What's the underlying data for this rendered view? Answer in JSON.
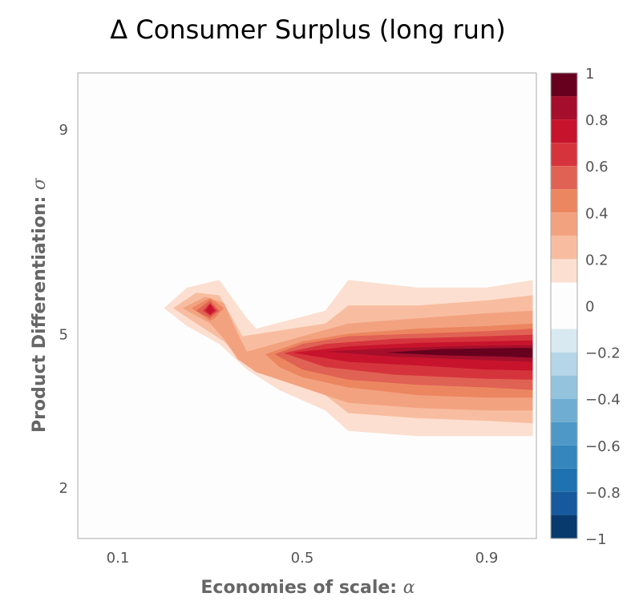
{
  "chart_data": {
    "type": "contour",
    "title": "Δ Consumer Surplus (long run)",
    "xlabel": "Economies of scale: ",
    "xlabel_symbol": "α",
    "ylabel": "Product Differentiation: ",
    "ylabel_symbol": "σ",
    "xlim": [
      0.05,
      1.0
    ],
    "ylim": [
      1.0,
      10.0
    ],
    "x_ticks": [
      0.1,
      0.5,
      0.9
    ],
    "x_tick_labels": [
      "0.1",
      "0.5",
      "0.9"
    ],
    "y_ticks": [
      2,
      5,
      9
    ],
    "y_tick_labels": [
      "2",
      "5",
      "9"
    ],
    "grid": false,
    "colorbar": {
      "position": "right",
      "min": -1,
      "max": 1,
      "tick_values": [
        1,
        0.8,
        0.6,
        0.4,
        0.2,
        0,
        -0.2,
        -0.4,
        -0.6,
        -0.8,
        -1
      ],
      "tick_labels": [
        "1",
        "0.8",
        "0.6",
        "0.4",
        "0.2",
        "0",
        "−0.2",
        "−0.4",
        "−0.6",
        "−0.8",
        "−1"
      ],
      "bands": [
        {
          "from": 0.9,
          "to": 1.0,
          "color": "#67001f"
        },
        {
          "from": 0.8,
          "to": 0.9,
          "color": "#a50f2c"
        },
        {
          "from": 0.7,
          "to": 0.8,
          "color": "#c7142c"
        },
        {
          "from": 0.6,
          "to": 0.7,
          "color": "#d6343c"
        },
        {
          "from": 0.5,
          "to": 0.6,
          "color": "#e06254"
        },
        {
          "from": 0.4,
          "to": 0.5,
          "color": "#ec8660"
        },
        {
          "from": 0.3,
          "to": 0.4,
          "color": "#f3a280"
        },
        {
          "from": 0.2,
          "to": 0.3,
          "color": "#f8bda0"
        },
        {
          "from": 0.1,
          "to": 0.2,
          "color": "#fcdfd0"
        },
        {
          "from": -0.1,
          "to": 0.1,
          "color": "#fdfdfd"
        },
        {
          "from": -0.2,
          "to": -0.1,
          "color": "#d9e9f2"
        },
        {
          "from": -0.3,
          "to": -0.2,
          "color": "#b5d6e8"
        },
        {
          "from": -0.4,
          "to": -0.3,
          "color": "#93c3dd"
        },
        {
          "from": -0.5,
          "to": -0.4,
          "color": "#6fadd2"
        },
        {
          "from": -0.6,
          "to": -0.5,
          "color": "#4d98c7"
        },
        {
          "from": -0.7,
          "to": -0.6,
          "color": "#3486bd"
        },
        {
          "from": -0.8,
          "to": -0.7,
          "color": "#1f72b0"
        },
        {
          "from": -0.9,
          "to": -0.8,
          "color": "#16599c"
        },
        {
          "from": -1.0,
          "to": -0.9,
          "color": "#083a6e"
        }
      ]
    },
    "contour_regions": [
      {
        "level": 0.1,
        "color": "#fcdfd0",
        "points": [
          [
            0.2,
            5.5
          ],
          [
            0.25,
            5.9
          ],
          [
            0.32,
            6.05
          ],
          [
            0.38,
            5.3
          ],
          [
            0.4,
            5.1
          ],
          [
            0.55,
            5.45
          ],
          [
            0.6,
            6.05
          ],
          [
            0.75,
            5.9
          ],
          [
            0.9,
            5.9
          ],
          [
            1.0,
            6.05
          ],
          [
            1.0,
            3.0
          ],
          [
            0.9,
            3.0
          ],
          [
            0.75,
            3.0
          ],
          [
            0.6,
            3.1
          ],
          [
            0.55,
            3.5
          ],
          [
            0.45,
            3.9
          ],
          [
            0.38,
            4.3
          ],
          [
            0.32,
            4.8
          ],
          [
            0.25,
            5.15
          ]
        ]
      },
      {
        "level": 0.2,
        "color": "#f8bda0",
        "points": [
          [
            0.22,
            5.5
          ],
          [
            0.27,
            5.8
          ],
          [
            0.32,
            5.75
          ],
          [
            0.37,
            4.95
          ],
          [
            0.55,
            5.2
          ],
          [
            0.6,
            5.55
          ],
          [
            0.75,
            5.55
          ],
          [
            0.9,
            5.65
          ],
          [
            1.0,
            5.75
          ],
          [
            1.0,
            3.25
          ],
          [
            0.9,
            3.3
          ],
          [
            0.75,
            3.35
          ],
          [
            0.6,
            3.45
          ],
          [
            0.55,
            3.8
          ],
          [
            0.45,
            4.15
          ],
          [
            0.38,
            4.4
          ],
          [
            0.33,
            4.85
          ],
          [
            0.27,
            5.2
          ]
        ]
      },
      {
        "level": 0.3,
        "color": "#f3a280",
        "points": [
          [
            0.24,
            5.5
          ],
          [
            0.29,
            5.72
          ],
          [
            0.33,
            5.6
          ],
          [
            0.36,
            5.0
          ],
          [
            0.38,
            4.65
          ],
          [
            0.5,
            4.95
          ],
          [
            0.6,
            5.2
          ],
          [
            0.75,
            5.3
          ],
          [
            0.9,
            5.4
          ],
          [
            1.0,
            5.45
          ],
          [
            1.0,
            3.5
          ],
          [
            0.9,
            3.5
          ],
          [
            0.75,
            3.55
          ],
          [
            0.6,
            3.65
          ],
          [
            0.5,
            3.95
          ],
          [
            0.4,
            4.25
          ],
          [
            0.36,
            4.5
          ],
          [
            0.33,
            4.9
          ],
          [
            0.3,
            5.2
          ]
        ]
      },
      {
        "level": 0.4,
        "color": "#ec8660",
        "points": [
          [
            0.26,
            5.5
          ],
          [
            0.3,
            5.7
          ],
          [
            0.33,
            5.5
          ],
          [
            0.31,
            5.3
          ],
          [
            0.3,
            5.25
          ]
        ]
      },
      {
        "level": 0.4,
        "color": "#ec8660",
        "points": [
          [
            0.42,
            4.6
          ],
          [
            0.5,
            4.85
          ],
          [
            0.6,
            5.0
          ],
          [
            0.75,
            5.1
          ],
          [
            0.9,
            5.15
          ],
          [
            1.0,
            5.2
          ],
          [
            1.0,
            3.75
          ],
          [
            0.9,
            3.75
          ],
          [
            0.75,
            3.8
          ],
          [
            0.6,
            3.95
          ],
          [
            0.5,
            4.15
          ],
          [
            0.45,
            4.35
          ]
        ]
      },
      {
        "level": 0.5,
        "color": "#e06254",
        "points": [
          [
            0.27,
            5.45
          ],
          [
            0.3,
            5.65
          ],
          [
            0.32,
            5.45
          ],
          [
            0.3,
            5.3
          ]
        ]
      },
      {
        "level": 0.5,
        "color": "#e06254",
        "points": [
          [
            0.44,
            4.6
          ],
          [
            0.5,
            4.8
          ],
          [
            0.6,
            4.95
          ],
          [
            0.75,
            5.0
          ],
          [
            0.9,
            5.05
          ],
          [
            1.0,
            5.1
          ],
          [
            1.0,
            3.9
          ],
          [
            0.9,
            3.95
          ],
          [
            0.75,
            4.0
          ],
          [
            0.6,
            4.1
          ],
          [
            0.5,
            4.3
          ]
        ]
      },
      {
        "level": 0.6,
        "color": "#d6343c",
        "points": [
          [
            0.285,
            5.45
          ],
          [
            0.3,
            5.6
          ],
          [
            0.315,
            5.45
          ],
          [
            0.3,
            5.35
          ]
        ]
      },
      {
        "level": 0.6,
        "color": "#d6343c",
        "points": [
          [
            0.46,
            4.62
          ],
          [
            0.55,
            4.8
          ],
          [
            0.7,
            4.9
          ],
          [
            0.9,
            4.95
          ],
          [
            1.0,
            4.98
          ],
          [
            1.0,
            4.1
          ],
          [
            0.9,
            4.12
          ],
          [
            0.7,
            4.2
          ],
          [
            0.55,
            4.35
          ]
        ]
      },
      {
        "level": 0.7,
        "color": "#c7142c",
        "points": [
          [
            0.29,
            5.45
          ],
          [
            0.3,
            5.58
          ],
          [
            0.31,
            5.45
          ],
          [
            0.3,
            5.38
          ]
        ]
      },
      {
        "level": 0.7,
        "color": "#c7142c",
        "points": [
          [
            0.48,
            4.63
          ],
          [
            0.6,
            4.75
          ],
          [
            0.75,
            4.82
          ],
          [
            0.9,
            4.85
          ],
          [
            1.0,
            4.87
          ],
          [
            1.0,
            4.28
          ],
          [
            0.9,
            4.3
          ],
          [
            0.75,
            4.38
          ],
          [
            0.6,
            4.45
          ]
        ]
      },
      {
        "level": 0.8,
        "color": "#a50f2c",
        "points": [
          [
            0.55,
            4.65
          ],
          [
            0.7,
            4.72
          ],
          [
            0.85,
            4.76
          ],
          [
            1.0,
            4.78
          ],
          [
            1.0,
            4.45
          ],
          [
            0.85,
            4.5
          ],
          [
            0.7,
            4.55
          ]
        ]
      },
      {
        "level": 0.9,
        "color": "#67001f",
        "points": [
          [
            0.68,
            4.63
          ],
          [
            0.8,
            4.7
          ],
          [
            0.95,
            4.72
          ],
          [
            1.0,
            4.72
          ],
          [
            1.0,
            4.53
          ],
          [
            0.95,
            4.55
          ],
          [
            0.8,
            4.58
          ]
        ]
      }
    ]
  }
}
